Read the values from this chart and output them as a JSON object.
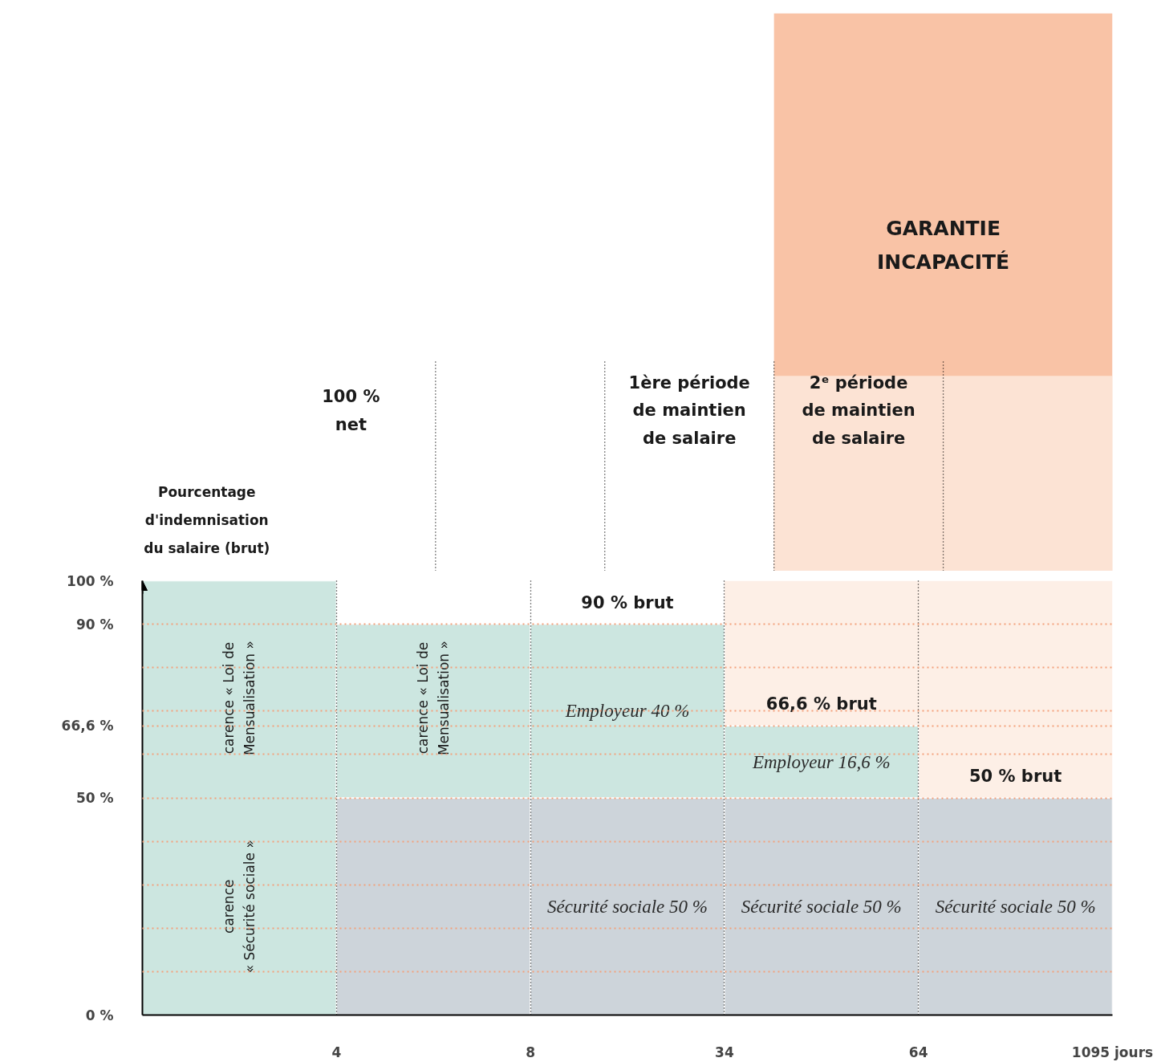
{
  "chart_data": {
    "type": "bar",
    "stacked": true,
    "categories": [
      null,
      null,
      null,
      null,
      null
    ],
    "series": [
      {
        "color": "#cdd4da",
        "values": [
          null,
          50,
          50,
          50,
          50
        ],
        "value_labels": [
          null,
          null,
          "Sécurité sociale 50 %",
          "Sécurité sociale 50 %",
          "Sécurité sociale 50 %"
        ]
      },
      {
        "color": "#cce6e0",
        "values": [
          100,
          40,
          40,
          16.6,
          null
        ],
        "value_labels": [
          null,
          null,
          "Employeur 40 %",
          "Employeur 16,6 %",
          null
        ]
      }
    ],
    "ylabel": "Pourcentage d'indemnisation du salaire (brut)",
    "ylim": [
      0,
      100
    ],
    "yticks": [
      {
        "value": 0,
        "label": "0 %"
      },
      {
        "value": 10,
        "label": null
      },
      {
        "value": 20,
        "label": null
      },
      {
        "value": 30,
        "label": null
      },
      {
        "value": 40,
        "label": null
      },
      {
        "value": 50,
        "label": "50 %"
      },
      {
        "value": 60,
        "label": null
      },
      {
        "value": 66.6,
        "label": "66,6 %"
      },
      {
        "value": 70,
        "label": null
      },
      {
        "value": 80,
        "label": null
      },
      {
        "value": 90,
        "label": "90 %"
      },
      {
        "value": 100,
        "label": "100 %"
      }
    ],
    "grid": true,
    "annotations": [
      {
        "text": "90 % brut",
        "y": 90
      },
      {
        "text": "66,6 % brut",
        "y": 66.6
      },
      {
        "text": "50 % brut",
        "y": 50
      },
      "100 %\nnet",
      "1ère période\nde maintien\nde salaire",
      "2ᵉ période\nde maintien\nde salaire",
      "GARANTIE\nINCAPACITÉ",
      "carence « Loi de\nMensualisation »",
      "carence\n« Sécurité sociale »",
      "carence « Loi de\nMensualisation »",
      "4",
      "8",
      "34",
      "64",
      "1095 jours"
    ]
  }
}
